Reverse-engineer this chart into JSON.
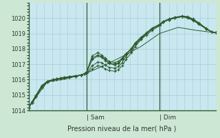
{
  "background_color": "#cce8d4",
  "plot_bg_color": "#c8e8f0",
  "grid_color_major": "#b0c8d8",
  "grid_color_minor": "#d0e4ec",
  "line_color": "#2d5a2d",
  "ylim": [
    1014,
    1021
  ],
  "yticks": [
    1014,
    1015,
    1016,
    1017,
    1018,
    1019,
    1020
  ],
  "xlabel": "Pression niveau de la mer( hPa )",
  "vline_positions": [
    0.31,
    0.7
  ],
  "day_labels": [
    [
      "Sam",
      0.31
    ],
    [
      "Dim",
      0.7
    ]
  ],
  "lines": [
    {
      "x": [
        0.0,
        0.02,
        0.04,
        0.07,
        0.1,
        0.13,
        0.15,
        0.17,
        0.19,
        0.22,
        0.25,
        0.28,
        0.3,
        0.31,
        0.34,
        0.37,
        0.39,
        0.41,
        0.43,
        0.46,
        0.48,
        0.5,
        0.52,
        0.55,
        0.57,
        0.6,
        0.63,
        0.66,
        0.7,
        0.72,
        0.75,
        0.78,
        0.82,
        0.85,
        0.88,
        0.91,
        0.95,
        0.98,
        1.0
      ],
      "y": [
        1014.2,
        1014.6,
        1015.0,
        1015.6,
        1015.9,
        1016.0,
        1016.05,
        1016.1,
        1016.15,
        1016.2,
        1016.25,
        1016.3,
        1016.4,
        1016.5,
        1017.55,
        1017.75,
        1017.6,
        1017.4,
        1017.2,
        1017.1,
        1017.2,
        1017.4,
        1017.7,
        1018.0,
        1018.3,
        1018.6,
        1018.9,
        1019.2,
        1019.5,
        1019.75,
        1019.9,
        1020.05,
        1020.1,
        1020.0,
        1019.85,
        1019.6,
        1019.3,
        1019.1,
        1019.05
      ],
      "has_marker": true
    },
    {
      "x": [
        0.0,
        0.02,
        0.04,
        0.07,
        0.1,
        0.13,
        0.15,
        0.17,
        0.19,
        0.22,
        0.25,
        0.28,
        0.3,
        0.31,
        0.34,
        0.37,
        0.39,
        0.41,
        0.43,
        0.46,
        0.48,
        0.5,
        0.52,
        0.55,
        0.57,
        0.6,
        0.63,
        0.66,
        0.7,
        0.72,
        0.75,
        0.78,
        0.82,
        0.85,
        0.88,
        0.91,
        0.95,
        0.98,
        1.0
      ],
      "y": [
        1014.2,
        1014.6,
        1015.0,
        1015.6,
        1015.9,
        1016.0,
        1016.05,
        1016.1,
        1016.15,
        1016.2,
        1016.25,
        1016.3,
        1016.4,
        1016.5,
        1017.4,
        1017.6,
        1017.5,
        1017.3,
        1017.1,
        1017.0,
        1017.1,
        1017.35,
        1017.65,
        1018.0,
        1018.35,
        1018.7,
        1019.0,
        1019.3,
        1019.55,
        1019.75,
        1019.9,
        1020.0,
        1020.1,
        1020.05,
        1019.9,
        1019.65,
        1019.3,
        1019.1,
        1019.05
      ],
      "has_marker": true
    },
    {
      "x": [
        0.0,
        0.02,
        0.04,
        0.07,
        0.1,
        0.13,
        0.15,
        0.17,
        0.19,
        0.22,
        0.25,
        0.28,
        0.3,
        0.31,
        0.34,
        0.37,
        0.39,
        0.41,
        0.43,
        0.46,
        0.48,
        0.5,
        0.52,
        0.55,
        0.57,
        0.6,
        0.63,
        0.66,
        0.7,
        0.72,
        0.75,
        0.78,
        0.82,
        0.85,
        0.88,
        0.91,
        0.95,
        0.98,
        1.0
      ],
      "y": [
        1014.2,
        1014.5,
        1014.9,
        1015.5,
        1015.85,
        1015.98,
        1016.02,
        1016.06,
        1016.1,
        1016.15,
        1016.2,
        1016.3,
        1016.38,
        1016.45,
        1017.3,
        1017.55,
        1017.45,
        1017.25,
        1017.05,
        1016.95,
        1017.05,
        1017.3,
        1017.65,
        1018.05,
        1018.4,
        1018.75,
        1019.05,
        1019.35,
        1019.6,
        1019.8,
        1019.95,
        1020.05,
        1020.15,
        1020.1,
        1019.95,
        1019.7,
        1019.35,
        1019.1,
        1019.05
      ],
      "has_marker": true
    },
    {
      "x": [
        0.0,
        0.02,
        0.04,
        0.07,
        0.1,
        0.13,
        0.15,
        0.17,
        0.19,
        0.22,
        0.25,
        0.28,
        0.3,
        0.31,
        0.34,
        0.37,
        0.39,
        0.41,
        0.43,
        0.46,
        0.48,
        0.5,
        0.52,
        0.55,
        0.57,
        0.6,
        0.63,
        0.66,
        0.7,
        0.72,
        0.75,
        0.78,
        0.82,
        0.85,
        0.88,
        0.91,
        0.95,
        0.98,
        1.0
      ],
      "y": [
        1014.2,
        1014.5,
        1014.9,
        1015.5,
        1015.85,
        1015.98,
        1016.02,
        1016.06,
        1016.1,
        1016.15,
        1016.2,
        1016.3,
        1016.38,
        1016.42,
        1016.9,
        1017.15,
        1017.1,
        1016.95,
        1016.8,
        1016.75,
        1016.85,
        1017.1,
        1017.5,
        1017.9,
        1018.3,
        1018.7,
        1019.0,
        1019.3,
        1019.55,
        1019.75,
        1019.9,
        1020.0,
        1020.1,
        1020.05,
        1019.9,
        1019.65,
        1019.3,
        1019.1,
        1019.05
      ],
      "has_marker": true
    },
    {
      "x": [
        0.0,
        0.02,
        0.04,
        0.07,
        0.1,
        0.13,
        0.15,
        0.17,
        0.19,
        0.22,
        0.25,
        0.28,
        0.3,
        0.31,
        0.34,
        0.37,
        0.39,
        0.41,
        0.43,
        0.46,
        0.48,
        0.5,
        0.52,
        0.55,
        0.57,
        0.6,
        0.63,
        0.66,
        0.7,
        0.72,
        0.75,
        0.78,
        0.82,
        0.85,
        0.88,
        0.91,
        0.95,
        0.98,
        1.0
      ],
      "y": [
        1014.2,
        1014.5,
        1014.9,
        1015.5,
        1015.85,
        1015.98,
        1016.02,
        1016.06,
        1016.1,
        1016.15,
        1016.2,
        1016.3,
        1016.38,
        1016.42,
        1016.7,
        1016.9,
        1016.85,
        1016.7,
        1016.6,
        1016.55,
        1016.65,
        1016.9,
        1017.3,
        1017.75,
        1018.15,
        1018.6,
        1019.0,
        1019.3,
        1019.55,
        1019.75,
        1019.9,
        1020.0,
        1020.1,
        1020.05,
        1019.9,
        1019.65,
        1019.3,
        1019.1,
        1019.05
      ],
      "has_marker": true
    },
    {
      "x": [
        0.0,
        0.1,
        0.2,
        0.31,
        0.4,
        0.5,
        0.6,
        0.7,
        0.8,
        0.9,
        1.0
      ],
      "y": [
        1014.2,
        1015.85,
        1016.05,
        1016.42,
        1016.9,
        1017.5,
        1018.15,
        1019.0,
        1019.4,
        1019.2,
        1019.05
      ],
      "has_marker": false
    }
  ]
}
